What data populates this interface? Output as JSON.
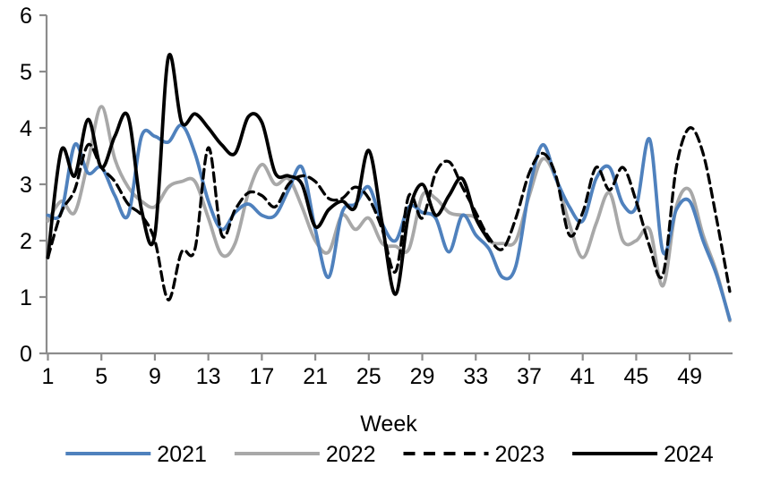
{
  "chart_data": {
    "type": "line",
    "title": "",
    "xlabel": "Week",
    "ylabel": "",
    "x_axis": {
      "tick_labels": [
        1,
        5,
        9,
        13,
        17,
        21,
        25,
        29,
        33,
        37,
        41,
        45,
        49
      ],
      "min": 1,
      "max": 52.3
    },
    "y_axis": {
      "tick_labels": [
        0,
        1,
        2,
        3,
        4,
        5,
        6
      ],
      "min": 0,
      "max": 6
    },
    "grid": false,
    "legend_position": "bottom-center",
    "x_unit": "week-number",
    "series": [
      {
        "name": "2021",
        "color": "#4F81BD",
        "dash": false,
        "values": [
          2.45,
          2.5,
          3.7,
          3.2,
          3.3,
          2.8,
          2.45,
          3.85,
          3.85,
          3.75,
          4.05,
          3.55,
          2.7,
          2.2,
          2.5,
          2.65,
          2.45,
          2.45,
          2.9,
          3.3,
          2.2,
          1.35,
          2.5,
          2.65,
          2.95,
          2.3,
          2.0,
          2.6,
          2.5,
          2.4,
          1.8,
          2.45,
          2.1,
          1.85,
          1.35,
          1.55,
          2.9,
          3.7,
          3.1,
          2.6,
          2.35,
          3.1,
          3.3,
          2.65,
          2.6,
          3.8,
          1.8,
          2.55,
          2.7,
          2.0,
          1.4,
          0.6
        ]
      },
      {
        "name": "2022",
        "color": "#A8A8A8",
        "dash": false,
        "values": [
          2.35,
          2.7,
          2.5,
          3.4,
          4.38,
          3.45,
          2.95,
          2.7,
          2.6,
          2.95,
          3.05,
          3.05,
          2.4,
          1.75,
          1.95,
          2.85,
          3.35,
          3.0,
          3.1,
          2.6,
          2.0,
          1.8,
          2.45,
          2.2,
          2.4,
          1.95,
          1.9,
          1.85,
          2.8,
          2.75,
          2.5,
          2.45,
          2.4,
          2.0,
          1.95,
          2.0,
          2.8,
          3.45,
          3.1,
          2.3,
          1.7,
          2.3,
          2.85,
          2.0,
          2.0,
          2.2,
          1.2,
          2.6,
          2.9,
          2.1,
          1.45,
          0.58
        ]
      },
      {
        "name": "2023",
        "color": "#000000",
        "dash": true,
        "values": [
          1.7,
          2.5,
          2.9,
          3.7,
          3.3,
          3.05,
          2.65,
          2.45,
          2.0,
          0.95,
          1.8,
          1.85,
          3.65,
          2.1,
          2.55,
          2.85,
          2.8,
          2.6,
          3.0,
          3.15,
          3.05,
          2.75,
          2.75,
          2.95,
          2.75,
          2.2,
          1.45,
          2.8,
          2.4,
          3.2,
          3.4,
          2.95,
          2.5,
          2.05,
          1.85,
          2.4,
          3.2,
          3.55,
          3.15,
          2.1,
          2.5,
          3.3,
          2.9,
          3.3,
          2.7,
          1.9,
          1.4,
          3.3,
          4.0,
          3.55,
          2.4,
          1.1
        ]
      },
      {
        "name": "2024",
        "color": "#000000",
        "dash": false,
        "values": [
          1.7,
          3.6,
          3.15,
          4.15,
          3.3,
          3.85,
          4.2,
          2.55,
          2.1,
          5.25,
          4.1,
          4.25,
          4.0,
          3.7,
          3.55,
          4.2,
          4.1,
          3.2,
          3.15,
          3.0,
          2.25,
          2.55,
          2.7,
          2.6,
          3.6,
          2.3,
          1.05,
          2.5,
          3.0,
          2.45,
          2.8,
          3.1,
          2.4,
          2.0
        ]
      }
    ]
  },
  "ui": {
    "background": "#FFFFFF",
    "axis_color": "#8C8C8C",
    "text_color": "#000000"
  }
}
